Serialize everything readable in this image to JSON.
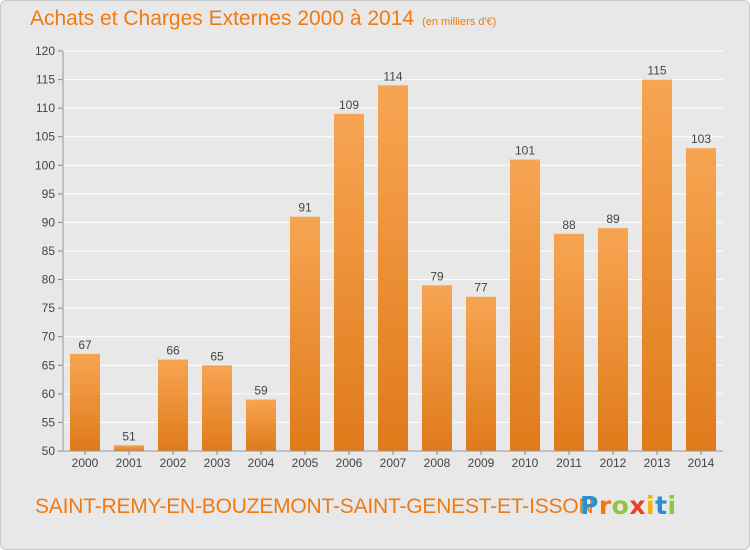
{
  "header": {
    "title": "Achats et Charges Externes 2000 à 2014",
    "unit": "(en milliers d'€)"
  },
  "footer": {
    "place": "SAINT-REMY-EN-BOUZEMONT-SAINT-GENEST-ET-ISSON",
    "logo_letters": [
      "P",
      "r",
      "o",
      "x",
      "i",
      "t",
      "i"
    ],
    "logo_colors": [
      "#2a8fd0",
      "#f07a10",
      "#8ec63f",
      "#e8412c",
      "#f7b500",
      "#2a8fd0",
      "#8ec63f"
    ]
  },
  "chart_data": {
    "type": "bar",
    "title": "Achats et Charges Externes 2000 à 2014",
    "categories": [
      "2000",
      "2001",
      "2002",
      "2003",
      "2004",
      "2005",
      "2006",
      "2007",
      "2008",
      "2009",
      "2010",
      "2011",
      "2012",
      "2013",
      "2014"
    ],
    "values": [
      67,
      51,
      66,
      65,
      59,
      91,
      109,
      114,
      79,
      77,
      101,
      88,
      89,
      115,
      103
    ],
    "ylim": [
      50,
      120
    ],
    "yticks": [
      50,
      55,
      60,
      65,
      70,
      75,
      80,
      85,
      90,
      95,
      100,
      105,
      110,
      115,
      120
    ],
    "grid": true,
    "data_labels": true,
    "colors": {
      "bar_light": "#f7a552",
      "bar_dark": "#e07a1b",
      "grid": "#ffffff",
      "background": "#e8e8e8",
      "text": "#444444"
    }
  }
}
